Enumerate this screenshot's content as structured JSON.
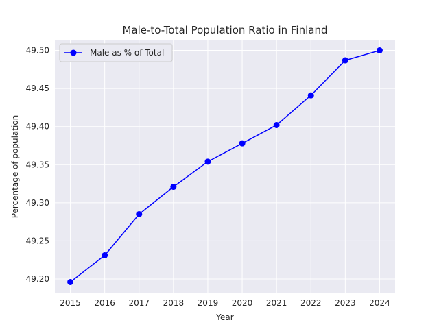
{
  "chart_data": {
    "type": "line",
    "title": "Male-to-Total Population Ratio in Finland",
    "xlabel": "Year",
    "ylabel": "Percentage of population",
    "x": [
      2015,
      2016,
      2017,
      2018,
      2019,
      2020,
      2021,
      2022,
      2023,
      2024
    ],
    "x_tick_labels": [
      "2015",
      "2016",
      "2017",
      "2018",
      "2019",
      "2020",
      "2021",
      "2022",
      "2023",
      "2024"
    ],
    "y_ticks": [
      49.2,
      49.25,
      49.3,
      49.35,
      49.4,
      49.45,
      49.5
    ],
    "y_tick_labels": [
      "49.20",
      "49.25",
      "49.30",
      "49.35",
      "49.40",
      "49.45",
      "49.50"
    ],
    "ylim": [
      49.182,
      49.514
    ],
    "xlim": [
      2014.55,
      2024.45
    ],
    "grid": true,
    "legend_position": "top-left",
    "series": [
      {
        "name": "Male as % of Total",
        "color": "#0000ff",
        "marker": "circle",
        "values": [
          49.196,
          49.231,
          49.285,
          49.321,
          49.354,
          49.378,
          49.402,
          49.441,
          49.487,
          49.5
        ]
      }
    ],
    "colors": {
      "plot_background": "#eaeaf2",
      "grid": "#ffffff"
    }
  }
}
